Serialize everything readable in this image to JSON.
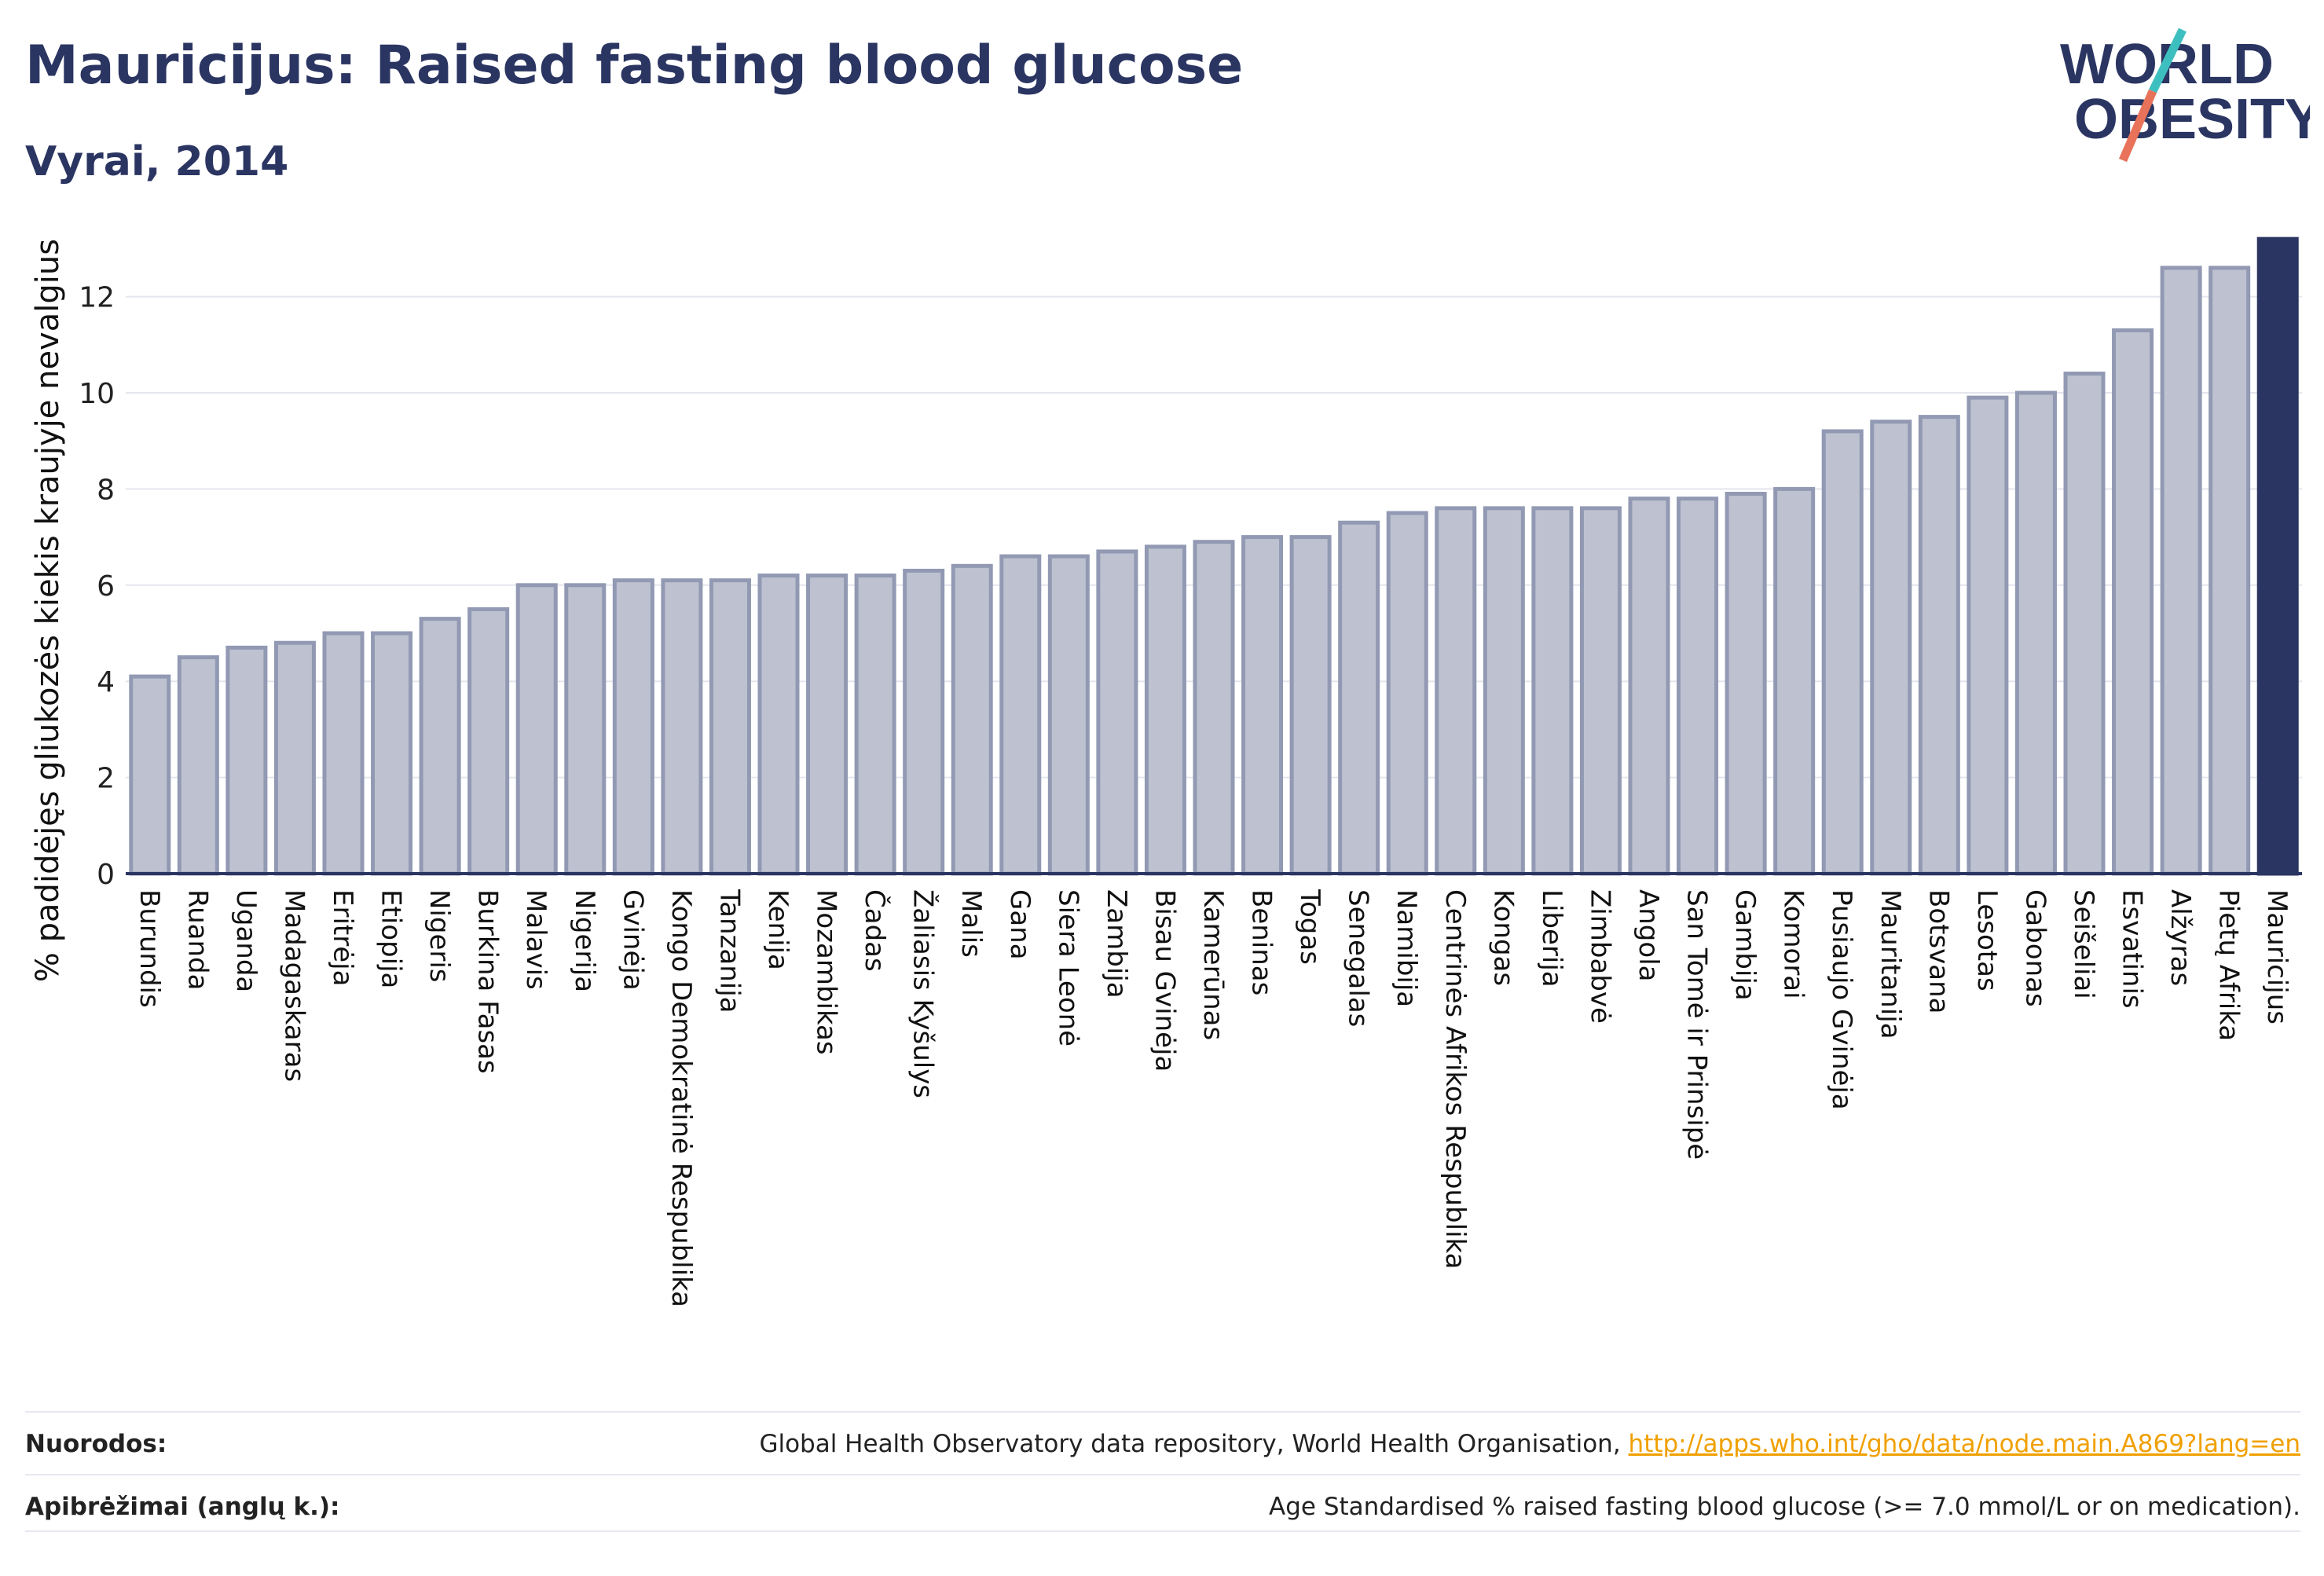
{
  "header": {
    "title": "Mauricijus: Raised fasting blood glucose",
    "subtitle": "Vyrai, 2014"
  },
  "logo": {
    "line1": "WORLD",
    "line2": "OBESITY",
    "colors": {
      "text": "#2b3562",
      "slash_top": "#3ebfbf",
      "slash_bottom": "#e8735a"
    }
  },
  "colors": {
    "bar_fill": "#bec2d0",
    "bar_stroke": "#9299b3",
    "highlight": "#2b3562",
    "grid": "#e4e6ee",
    "axis": "#2b3562"
  },
  "chart_data": {
    "type": "bar",
    "title": "Mauricijus: Raised fasting blood glucose",
    "subtitle": "Vyrai, 2014",
    "xlabel": "",
    "ylabel": "% padidėjęs gliukozės kiekis kraujyje nevalgius",
    "ylim": [
      0,
      13.2
    ],
    "yticks": [
      0,
      2,
      4,
      6,
      8,
      10,
      12
    ],
    "grid": true,
    "highlight": "Mauricijus",
    "categories": [
      "Burundis",
      "Ruanda",
      "Uganda",
      "Madagaskaras",
      "Eritrėja",
      "Etiopija",
      "Nigeris",
      "Burkina Fasas",
      "Malavis",
      "Nigerija",
      "Gvinėja",
      "Kongo Demokratinė Respublika",
      "Tanzanija",
      "Kenija",
      "Mozambikas",
      "Čadas",
      "Žaliasis Kyšulys",
      "Malis",
      "Gana",
      "Siera Leonė",
      "Zambija",
      "Bisau Gvinėja",
      "Kamerūnas",
      "Beninas",
      "Togas",
      "Senegalas",
      "Namibija",
      "Centrinės Afrikos Respublika",
      "Kongas",
      "Liberija",
      "Zimbabvė",
      "Angola",
      "San Tomė ir Prinsipė",
      "Gambija",
      "Komorai",
      "Pusiaujo Gvinėja",
      "Mauritanija",
      "Botsvana",
      "Lesotas",
      "Gabonas",
      "Seišeliai",
      "Esvatinis",
      "Alžyras",
      "Pietų Afrika",
      "Mauricijus"
    ],
    "values": [
      4.1,
      4.5,
      4.7,
      4.8,
      5.0,
      5.0,
      5.3,
      5.5,
      6.0,
      6.0,
      6.1,
      6.1,
      6.1,
      6.2,
      6.2,
      6.2,
      6.3,
      6.4,
      6.6,
      6.6,
      6.7,
      6.8,
      6.9,
      7.0,
      7.0,
      7.3,
      7.5,
      7.6,
      7.6,
      7.6,
      7.6,
      7.8,
      7.8,
      7.9,
      8.0,
      9.2,
      9.4,
      9.5,
      9.9,
      10.0,
      10.4,
      11.3,
      12.6,
      12.6,
      13.2
    ]
  },
  "footer": {
    "sources_label": "Nuorodos:",
    "sources_text": "Global Health Observatory data repository, World Health Organisation, ",
    "sources_link": "http://apps.who.int/gho/data/node.main.A869?lang=en",
    "definitions_label": "Apibrėžimai (anglų k.):",
    "definitions_text": "Age Standardised % raised fasting blood glucose (>= 7.0 mmol/L or on medication)."
  }
}
